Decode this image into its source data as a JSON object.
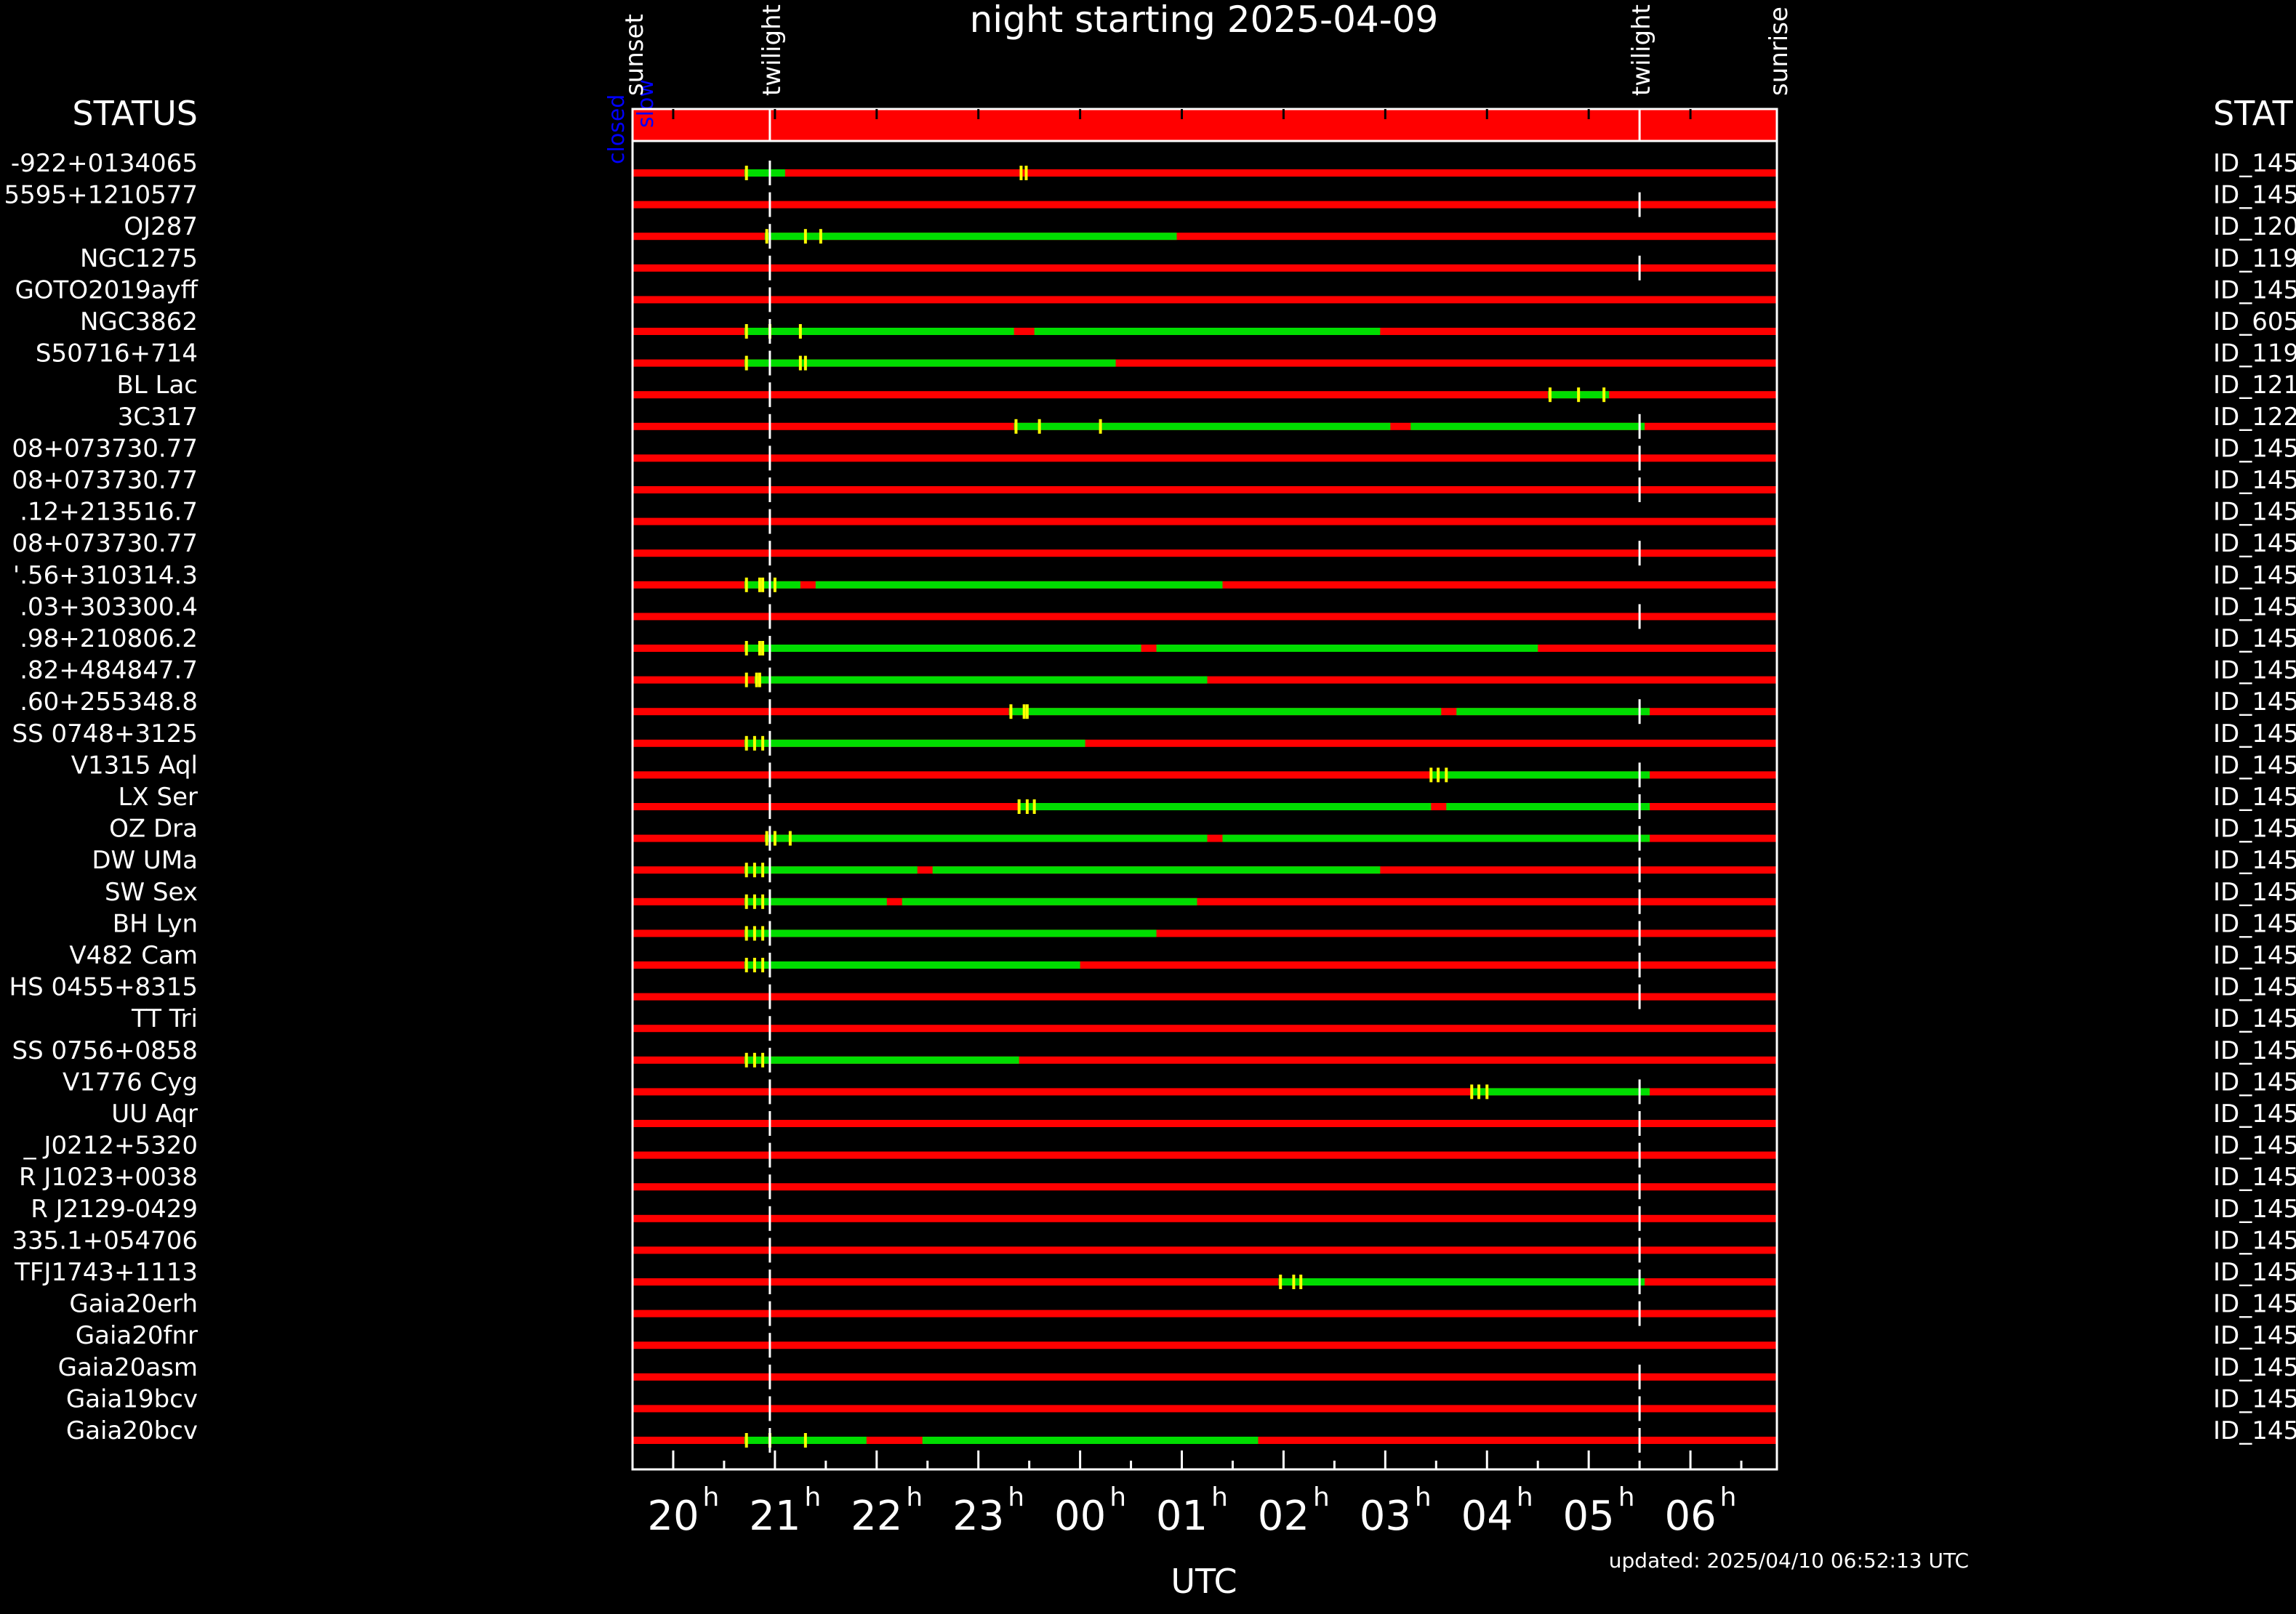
{
  "chart_data": {
    "type": "timeline",
    "title": "night starting 2025-04-09",
    "xlabel": "UTC",
    "x_unit": "hour (UTC)",
    "x_range": [
      19.6,
      6.85
    ],
    "x_ticks": [
      {
        "hour": 20,
        "label": "20"
      },
      {
        "hour": 21,
        "label": "21"
      },
      {
        "hour": 22,
        "label": "22"
      },
      {
        "hour": 23,
        "label": "23"
      },
      {
        "hour": 0,
        "label": "00"
      },
      {
        "hour": 1,
        "label": "01"
      },
      {
        "hour": 2,
        "label": "02"
      },
      {
        "hour": 3,
        "label": "03"
      },
      {
        "hour": 4,
        "label": "04"
      },
      {
        "hour": 5,
        "label": "05"
      },
      {
        "hour": 6,
        "label": "06"
      }
    ],
    "tick_superscript": "h",
    "events": [
      {
        "label": "sunset",
        "hour": 19.6,
        "line": false
      },
      {
        "label": "twilight",
        "hour": 20.95,
        "line": true
      },
      {
        "label": "twilight",
        "hour": 5.5,
        "line": true
      },
      {
        "label": "sunrise",
        "hour": 6.85,
        "line": false
      }
    ],
    "dome_status": {
      "labels": [
        "closed",
        "slow"
      ],
      "state": "closed",
      "color": "#ff0000"
    },
    "left_header": "STATUS",
    "right_header": "STAT",
    "colors": {
      "bad": "#ff0000",
      "good": "#00dd00",
      "mark": "#ffff00",
      "background": "#000000",
      "text": "#ffffff",
      "dome_text": "#0000ff"
    },
    "rows": [
      {
        "name": "-922+0134065",
        "id": "ID_145",
        "good": [
          [
            20.7,
            21.1
          ]
        ],
        "marks": [
          20.72,
          23.42,
          23.47
        ],
        "ticks": [
          20.95
        ]
      },
      {
        "name": "5595+1210577",
        "id": "ID_145",
        "good": [],
        "marks": [],
        "ticks": [
          20.95,
          5.5
        ]
      },
      {
        "name": "OJ287",
        "id": "ID_120",
        "good": [
          [
            20.9,
            0.95
          ]
        ],
        "marks": [
          20.92,
          21.3,
          21.45
        ],
        "ticks": [
          20.95
        ]
      },
      {
        "name": "NGC1275",
        "id": "ID_119",
        "good": [],
        "marks": [],
        "ticks": [
          20.95,
          5.5
        ]
      },
      {
        "name": "GOTO2019ayff",
        "id": "ID_145",
        "good": [],
        "marks": [],
        "ticks": [
          20.95
        ]
      },
      {
        "name": "NGC3862",
        "id": "ID_605",
        "good": [
          [
            20.7,
            23.35
          ],
          [
            23.55,
            2.95
          ]
        ],
        "marks": [
          20.72,
          20.95,
          21.25
        ],
        "ticks": [
          20.95
        ]
      },
      {
        "name": "S50716+714",
        "id": "ID_119",
        "good": [
          [
            20.7,
            0.35
          ]
        ],
        "marks": [
          20.72,
          21.25,
          21.3
        ],
        "ticks": [
          20.95
        ]
      },
      {
        "name": "BL Lac",
        "id": "ID_121",
        "good": [
          [
            4.6,
            5.2
          ]
        ],
        "marks": [
          4.62,
          4.9,
          5.15
        ],
        "ticks": [
          20.95
        ]
      },
      {
        "name": "3C317",
        "id": "ID_122",
        "good": [
          [
            23.35,
            3.05
          ],
          [
            3.25,
            5.55
          ]
        ],
        "marks": [
          23.37,
          23.6,
          0.2
        ],
        "ticks": [
          20.95,
          5.5
        ]
      },
      {
        "name": "08+073730.77",
        "id": "ID_145",
        "good": [],
        "marks": [],
        "ticks": [
          20.95,
          5.5
        ]
      },
      {
        "name": "08+073730.77",
        "id": "ID_145",
        "good": [],
        "marks": [],
        "ticks": [
          20.95,
          5.5
        ]
      },
      {
        "name": ".12+213516.7",
        "id": "ID_145",
        "good": [],
        "marks": [],
        "ticks": [
          20.95
        ]
      },
      {
        "name": "08+073730.77",
        "id": "ID_145",
        "good": [],
        "marks": [],
        "ticks": [
          20.95,
          5.5
        ]
      },
      {
        "name": "'.56+310314.3",
        "id": "ID_145",
        "good": [
          [
            20.7,
            21.25
          ],
          [
            21.4,
            1.4
          ]
        ],
        "marks": [
          20.72,
          20.85,
          20.88,
          21.0
        ],
        "ticks": [
          20.95
        ]
      },
      {
        "name": ".03+303300.4",
        "id": "ID_145",
        "good": [],
        "marks": [],
        "ticks": [
          20.95,
          5.5
        ]
      },
      {
        "name": ".98+210806.2",
        "id": "ID_145",
        "good": [
          [
            20.7,
            0.6
          ],
          [
            0.75,
            4.5
          ]
        ],
        "marks": [
          20.72,
          20.85,
          20.88
        ],
        "ticks": [
          20.95
        ]
      },
      {
        "name": ".82+484847.7",
        "id": "ID_145",
        "good": [
          [
            20.8,
            1.25
          ]
        ],
        "marks": [
          20.72,
          20.82,
          20.85
        ],
        "ticks": [
          20.95
        ]
      },
      {
        "name": ".60+255348.8",
        "id": "ID_145",
        "good": [
          [
            23.3,
            3.55
          ],
          [
            3.7,
            5.6
          ]
        ],
        "marks": [
          23.32,
          23.45,
          23.48
        ],
        "ticks": [
          20.95,
          5.5
        ]
      },
      {
        "name": "SS 0748+3125",
        "id": "ID_145",
        "good": [
          [
            20.7,
            0.05
          ]
        ],
        "marks": [
          20.72,
          20.8,
          20.88
        ],
        "ticks": [
          20.95
        ]
      },
      {
        "name": "V1315 Aql",
        "id": "ID_145",
        "good": [
          [
            3.45,
            5.6
          ]
        ],
        "marks": [
          3.45,
          3.52,
          3.6
        ],
        "ticks": [
          20.95,
          5.5
        ]
      },
      {
        "name": "LX Ser",
        "id": "ID_145",
        "good": [
          [
            23.4,
            3.45
          ],
          [
            3.6,
            5.6
          ]
        ],
        "marks": [
          23.4,
          23.48,
          23.55
        ],
        "ticks": [
          20.95,
          5.5
        ]
      },
      {
        "name": "OZ Dra",
        "id": "ID_145",
        "good": [
          [
            20.9,
            1.25
          ],
          [
            1.4,
            5.6
          ]
        ],
        "marks": [
          20.92,
          21.0,
          21.15
        ],
        "ticks": [
          20.95,
          5.5
        ]
      },
      {
        "name": "DW UMa",
        "id": "ID_145",
        "good": [
          [
            20.7,
            22.4
          ],
          [
            22.55,
            2.95
          ]
        ],
        "marks": [
          20.72,
          20.8,
          20.88
        ],
        "ticks": [
          20.95,
          5.5
        ]
      },
      {
        "name": "SW Sex",
        "id": "ID_145",
        "good": [
          [
            20.7,
            22.1
          ],
          [
            22.25,
            1.15
          ]
        ],
        "marks": [
          20.72,
          20.8,
          20.88
        ],
        "ticks": [
          20.95,
          5.5
        ]
      },
      {
        "name": "BH Lyn",
        "id": "ID_145",
        "good": [
          [
            20.7,
            0.75
          ]
        ],
        "marks": [
          20.72,
          20.8,
          20.88
        ],
        "ticks": [
          20.95,
          5.5
        ]
      },
      {
        "name": "V482 Cam",
        "id": "ID_145",
        "good": [
          [
            20.7,
            0.0
          ]
        ],
        "marks": [
          20.72,
          20.8,
          20.88
        ],
        "ticks": [
          20.95,
          5.5
        ]
      },
      {
        "name": "HS 0455+8315",
        "id": "ID_145",
        "good": [],
        "marks": [],
        "ticks": [
          20.95,
          5.5
        ]
      },
      {
        "name": "TT Tri",
        "id": "ID_145",
        "good": [],
        "marks": [],
        "ticks": [
          20.95
        ]
      },
      {
        "name": "SS 0756+0858",
        "id": "ID_145",
        "good": [
          [
            20.7,
            23.4
          ]
        ],
        "marks": [
          20.72,
          20.8,
          20.88
        ],
        "ticks": [
          20.95
        ]
      },
      {
        "name": "V1776 Cyg",
        "id": "ID_145",
        "good": [
          [
            3.85,
            5.6
          ]
        ],
        "marks": [
          3.85,
          3.92,
          4.0
        ],
        "ticks": [
          20.95,
          5.5
        ]
      },
      {
        "name": "UU Aqr",
        "id": "ID_145",
        "good": [],
        "marks": [],
        "ticks": [
          20.95,
          5.5
        ]
      },
      {
        "name": "_ J0212+5320",
        "id": "ID_145",
        "good": [],
        "marks": [],
        "ticks": [
          20.95,
          5.5
        ]
      },
      {
        "name": "R J1023+0038",
        "id": "ID_145",
        "good": [],
        "marks": [],
        "ticks": [
          20.95,
          5.5
        ]
      },
      {
        "name": "R J2129-0429",
        "id": "ID_145",
        "good": [],
        "marks": [],
        "ticks": [
          20.95,
          5.5
        ]
      },
      {
        "name": "335.1+054706",
        "id": "ID_145",
        "good": [],
        "marks": [],
        "ticks": [
          20.95,
          5.5
        ]
      },
      {
        "name": "TFJ1743+1113",
        "id": "ID_145",
        "good": [
          [
            1.95,
            5.55
          ]
        ],
        "marks": [
          1.97,
          2.1,
          2.17
        ],
        "ticks": [
          20.95,
          5.5
        ]
      },
      {
        "name": "Gaia20erh",
        "id": "ID_145",
        "good": [],
        "marks": [],
        "ticks": [
          20.95,
          5.5
        ]
      },
      {
        "name": "Gaia20fnr",
        "id": "ID_145",
        "good": [],
        "marks": [],
        "ticks": [
          20.95
        ]
      },
      {
        "name": "Gaia20asm",
        "id": "ID_145",
        "good": [],
        "marks": [],
        "ticks": [
          20.95,
          5.5
        ]
      },
      {
        "name": "Gaia19bcv",
        "id": "ID_145",
        "good": [],
        "marks": [],
        "ticks": [
          20.95,
          5.5
        ]
      },
      {
        "name": "Gaia20bcv",
        "id": "ID_145",
        "good": [
          [
            20.7,
            21.9
          ],
          [
            22.45,
            1.75
          ]
        ],
        "marks": [
          20.72,
          20.95,
          21.3
        ],
        "ticks": [
          20.95,
          5.5
        ]
      }
    ],
    "updated": "updated: 2025/04/10 06:52:13 UTC"
  }
}
